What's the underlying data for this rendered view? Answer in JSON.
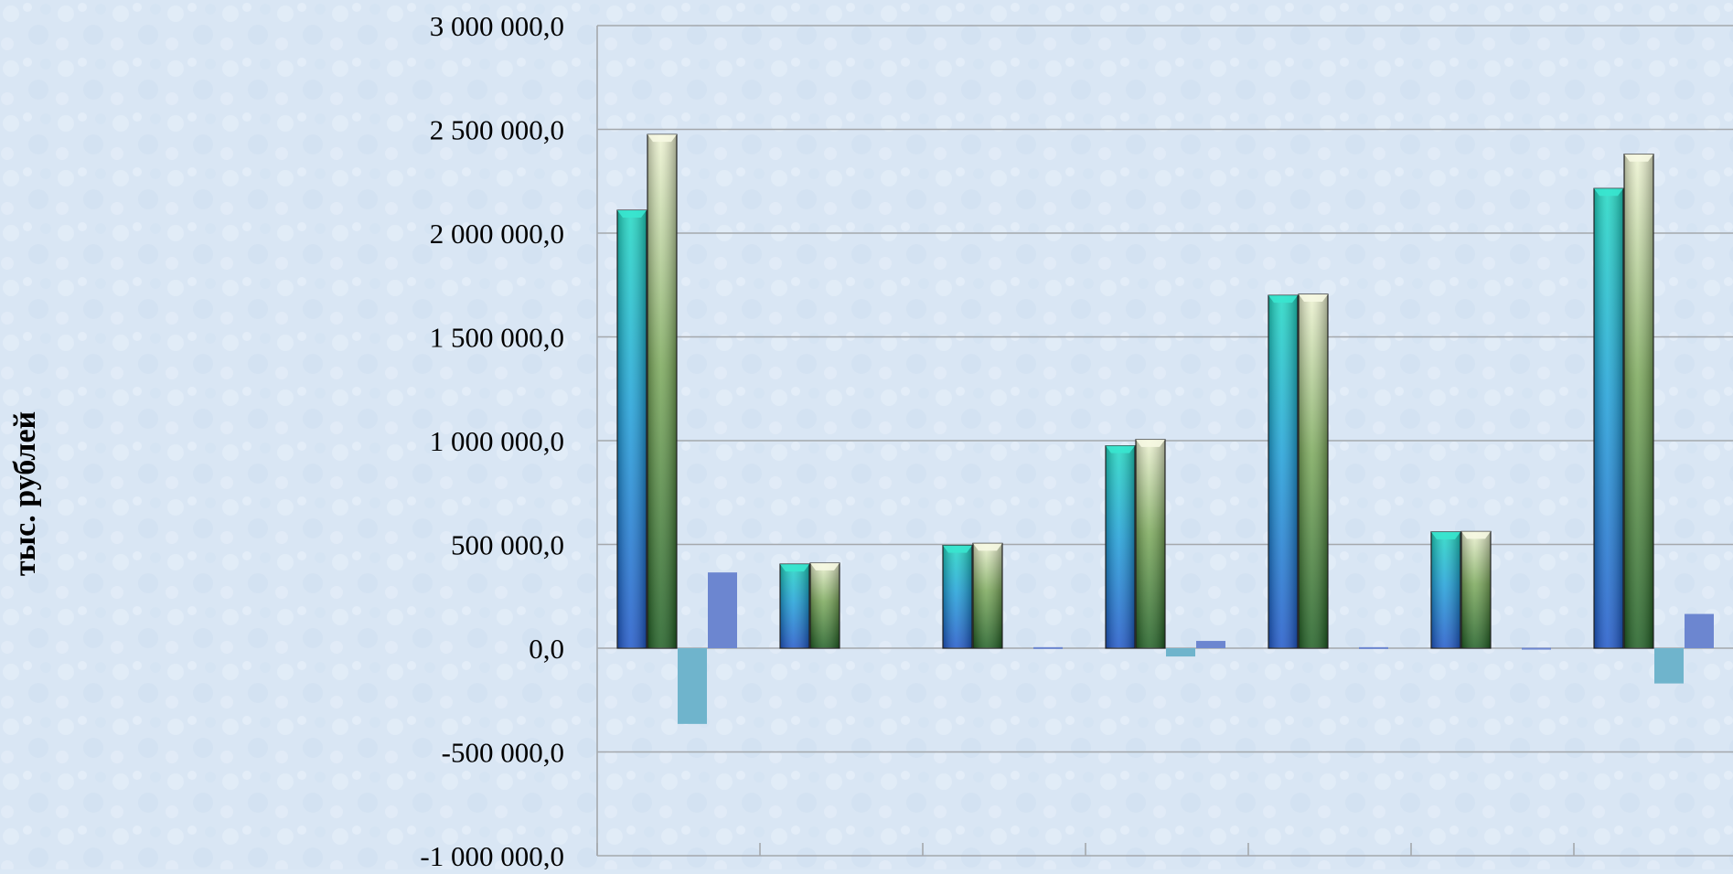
{
  "chart_data": {
    "type": "bar",
    "ylabel": "тыс. рублей",
    "ylim": [
      -1000000,
      3000000
    ],
    "y_ticks": [
      -1000000,
      -500000,
      0,
      500000,
      1000000,
      1500000,
      2000000,
      2500000,
      3000000
    ],
    "y_tick_labels": [
      "-1 000 000,0",
      "-500 000,0",
      "0,0",
      "500 000,0",
      "1 000 000,0",
      "1 500 000,0",
      "2 000 000,0",
      "2 500 000,0",
      "3 000 000,0"
    ],
    "grid": true,
    "group_count": 7,
    "series": [
      {
        "color": "#1fa8c8",
        "values": [
          2110000,
          405000,
          495000,
          975000,
          1700000,
          560000,
          2215000
        ]
      },
      {
        "color": "#7fae5c",
        "values": [
          2475000,
          410000,
          505000,
          1005000,
          1705000,
          562000,
          2380000
        ]
      },
      {
        "color": "#6fb4cc",
        "values": [
          -365000,
          0,
          0,
          -40000,
          0,
          0,
          -170000
        ]
      },
      {
        "color": "#6c86d0",
        "values": [
          365000,
          0,
          5000,
          35000,
          5000,
          2000,
          165000
        ]
      }
    ]
  }
}
